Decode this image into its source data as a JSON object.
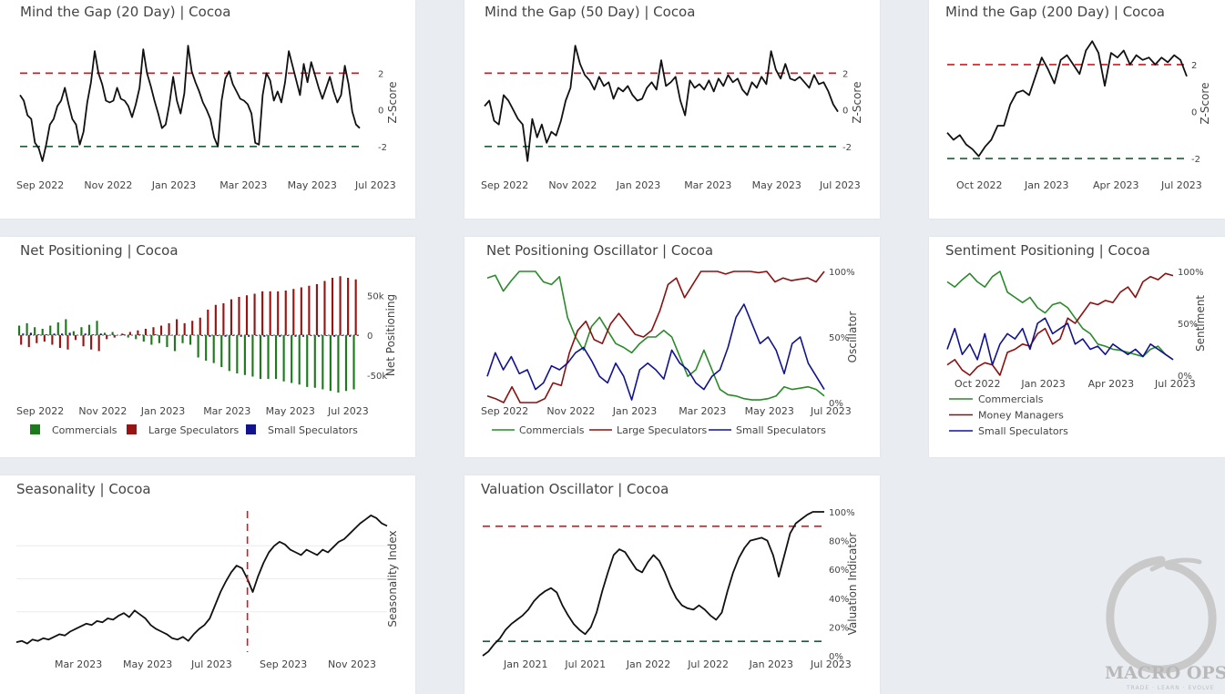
{
  "colors": {
    "red_dash": "#c81d25",
    "green_dash": "#1e5a3a",
    "black": "#111111",
    "green": "#2a8a2a",
    "darkred": "#8b1010",
    "navy": "#12128f",
    "bar_green": "#1c7a1c",
    "bar_red": "#991313",
    "bar_navy": "#131390"
  },
  "branding": {
    "logo_text": "MACRO OPS",
    "logo_tagline": "TRADE · LEARN · EVOLVE"
  },
  "charts": [
    {
      "title": "Mind the Gap (20 Day) | Cocoa",
      "chart_data": {
        "type": "line",
        "series": [
          {
            "values": [
              0.8,
              0.5,
              -0.3,
              -0.5,
              -1.8,
              -2.1,
              -2.8,
              -1.9,
              -0.8,
              -0.5,
              0.2,
              0.5,
              1.2,
              0.3,
              -0.5,
              -0.8,
              -1.9,
              -1.2,
              0.4,
              1.5,
              3.2,
              2.0,
              1.4,
              0.5,
              0.4,
              0.5,
              1.2,
              0.6,
              0.5,
              0.2,
              -0.4,
              0.3,
              1.2,
              3.3,
              2.0,
              1.3,
              0.5,
              -0.2,
              -1.0,
              -0.8,
              0.3,
              1.8,
              0.5,
              -0.2,
              0.9,
              3.5,
              2.1,
              1.5,
              1.0,
              0.4,
              0.0,
              -0.5,
              -1.5,
              -2.0,
              0.5,
              1.7,
              2.1,
              1.4,
              1.0,
              0.6,
              0.5,
              0.3,
              -0.2,
              -1.8,
              -1.9,
              0.8,
              2.0,
              1.6,
              0.5,
              1.0,
              0.4,
              1.5,
              3.2,
              2.4,
              1.6,
              0.8,
              2.5,
              1.5,
              2.6,
              1.9,
              1.2,
              0.6,
              1.2,
              1.8,
              1.0,
              0.4,
              0.8,
              2.4,
              1.4,
              -0.1,
              -0.8,
              -1.0
            ]
          }
        ],
        "yticks": [
          2,
          0,
          -2
        ],
        "ylim": [
          -3.2,
          4.0
        ],
        "xticks": [
          "Sep 2022",
          "Nov 2022",
          "Jan 2023",
          "Mar 2023",
          "May 2023",
          "Jul 2023"
        ],
        "ylabel": "Z-Score",
        "hlines": [
          2,
          -2
        ]
      }
    },
    {
      "title": "Mind the Gap (50 Day) | Cocoa",
      "chart_data": {
        "type": "line",
        "series": [
          {
            "values": [
              0.2,
              0.5,
              -0.6,
              -0.8,
              0.8,
              0.5,
              0.0,
              -0.5,
              -0.8,
              -2.8,
              -0.5,
              -1.5,
              -0.8,
              -1.8,
              -1.2,
              -1.4,
              -0.6,
              0.5,
              1.2,
              3.5,
              2.5,
              1.9,
              1.6,
              1.1,
              1.8,
              1.3,
              1.5,
              0.6,
              1.2,
              1.0,
              1.3,
              0.8,
              0.5,
              0.6,
              1.2,
              1.5,
              1.1,
              2.7,
              1.3,
              1.5,
              1.8,
              0.5,
              -0.3,
              1.6,
              1.2,
              1.4,
              1.1,
              1.6,
              1.0,
              1.7,
              1.3,
              1.9,
              1.5,
              1.7,
              1.1,
              0.8,
              1.5,
              1.2,
              1.8,
              1.4,
              3.2,
              2.2,
              1.7,
              2.5,
              1.7,
              1.6,
              1.8,
              1.5,
              1.2,
              1.9,
              1.4,
              1.5,
              1.0,
              0.3,
              -0.1
            ]
          }
        ],
        "yticks": [
          2,
          0,
          -2
        ],
        "ylim": [
          -3.2,
          4.0
        ],
        "xticks": [
          "Sep 2022",
          "Nov 2022",
          "Jan 2023",
          "Mar 2023",
          "May 2023",
          "Jul 2023"
        ],
        "ylabel": "Z-Score",
        "hlines": [
          2,
          -2
        ]
      }
    },
    {
      "title": "Mind the Gap (200 Day) | Cocoa",
      "chart_data": {
        "type": "line",
        "series": [
          {
            "values": [
              -0.9,
              -1.2,
              -1.0,
              -1.4,
              -1.6,
              -1.9,
              -1.5,
              -1.2,
              -0.6,
              -0.6,
              0.3,
              0.8,
              0.9,
              0.7,
              1.5,
              2.3,
              1.8,
              1.2,
              2.2,
              2.4,
              2.0,
              1.6,
              2.6,
              3.0,
              2.5,
              1.1,
              2.5,
              2.3,
              2.6,
              2.0,
              2.4,
              2.2,
              2.3,
              2.0,
              2.3,
              2.1,
              2.4,
              2.2,
              1.5
            ]
          }
        ],
        "yticks": [
          2,
          0,
          -2
        ],
        "ylim": [
          -2.5,
          3.2
        ],
        "xticks": [
          "Oct 2022",
          "Jan 2023",
          "Apr 2023",
          "Jul 2023"
        ],
        "ylabel": "Z-Score",
        "hlines": [
          2,
          -2
        ]
      }
    },
    {
      "title": "Net Positioning | Cocoa",
      "chart_data": {
        "type": "bar",
        "series": [
          {
            "name": "Commercials",
            "values": [
              12,
              15,
              10,
              8,
              12,
              16,
              20,
              5,
              10,
              13,
              18,
              3,
              4,
              0,
              -3,
              -5,
              -8,
              -12,
              -10,
              -15,
              -20,
              -10,
              -12,
              -28,
              -32,
              -35,
              -40,
              -45,
              -48,
              -50,
              -52,
              -55,
              -55,
              -55,
              -58,
              -60,
              -62,
              -65,
              -66,
              -68,
              -70,
              -72,
              -70,
              -68
            ]
          },
          {
            "name": "Large Speculators",
            "values": [
              -12,
              -15,
              -10,
              -8,
              -12,
              -16,
              -18,
              -6,
              -14,
              -18,
              -20,
              -5,
              -3,
              2,
              4,
              6,
              8,
              10,
              12,
              15,
              20,
              15,
              18,
              22,
              32,
              38,
              40,
              45,
              48,
              50,
              52,
              55,
              55,
              55,
              56,
              58,
              60,
              62,
              64,
              68,
              72,
              74,
              72,
              70
            ]
          },
          {
            "name": "Small Speculators",
            "values": [
              2,
              3,
              1,
              1,
              2,
              2,
              3,
              0,
              2,
              1,
              2,
              0,
              0,
              1,
              0,
              1,
              0,
              1,
              0,
              0,
              0,
              -1,
              0,
              -1,
              -2,
              -1,
              -2,
              -1,
              -2,
              -2,
              -1,
              -2,
              -1,
              -2,
              -1,
              -2,
              -2,
              -1,
              -2,
              -1,
              -2,
              -1,
              -2,
              -1
            ]
          }
        ],
        "yticks": [
          50,
          0,
          -50
        ],
        "yticklabels": [
          "50k",
          "0",
          "-50k"
        ],
        "ylim": [
          -80,
          80
        ],
        "xticks": [
          "Sep 2022",
          "Nov 2022",
          "Jan 2023",
          "Mar 2023",
          "May 2023",
          "Jul 2023"
        ],
        "ylabel": "Net Positioning",
        "legend": [
          "Commercials",
          "Large Speculators",
          "Small Speculators"
        ]
      }
    },
    {
      "title": "Net Positioning Oscillator | Cocoa",
      "chart_data": {
        "type": "line",
        "series": [
          {
            "name": "Commercials",
            "values": [
              95,
              97,
              85,
              93,
              100,
              100,
              100,
              92,
              90,
              96,
              65,
              50,
              40,
              58,
              65,
              55,
              45,
              42,
              38,
              45,
              50,
              50,
              55,
              50,
              35,
              20,
              25,
              40,
              25,
              10,
              6,
              5,
              3,
              2,
              2,
              3,
              5,
              12,
              10,
              11,
              12,
              10,
              5
            ]
          },
          {
            "name": "Large Speculators",
            "values": [
              5,
              3,
              0,
              12,
              0,
              0,
              0,
              3,
              15,
              13,
              38,
              55,
              62,
              48,
              45,
              60,
              68,
              60,
              52,
              50,
              55,
              70,
              90,
              95,
              80,
              90,
              100,
              100,
              100,
              98,
              100,
              100,
              100,
              99,
              100,
              92,
              95,
              93,
              94,
              95,
              92,
              100
            ]
          },
          {
            "name": "Small Speculators",
            "values": [
              20,
              38,
              25,
              35,
              22,
              25,
              10,
              15,
              28,
              25,
              30,
              38,
              42,
              32,
              20,
              15,
              30,
              20,
              2,
              25,
              30,
              25,
              18,
              40,
              30,
              25,
              15,
              10,
              20,
              25,
              42,
              65,
              75,
              60,
              45,
              50,
              40,
              22,
              45,
              50,
              30,
              20,
              10
            ]
          }
        ],
        "yticks": [
          100,
          50,
          0
        ],
        "yticklabels": [
          "100%",
          "50%",
          "0%"
        ],
        "ylim": [
          0,
          100
        ],
        "xticks": [
          "Sep 2022",
          "Nov 2022",
          "Jan 2023",
          "Mar 2023",
          "May 2023",
          "Jul 2023"
        ],
        "ylabel": "Oscillator",
        "legend": [
          "Commercials",
          "Large Speculators",
          "Small Speculators"
        ]
      }
    },
    {
      "title": "Sentiment Positioning | Cocoa",
      "chart_data": {
        "type": "line",
        "series": [
          {
            "name": "Commercials",
            "values": [
              90,
              85,
              92,
              98,
              90,
              85,
              95,
              100,
              80,
              75,
              70,
              75,
              65,
              60,
              68,
              70,
              65,
              55,
              45,
              40,
              30,
              28,
              25,
              24,
              22,
              20,
              18,
              25,
              28,
              20,
              15
            ]
          },
          {
            "name": "Money Managers",
            "values": [
              10,
              15,
              5,
              0,
              8,
              12,
              10,
              0,
              22,
              25,
              30,
              28,
              40,
              45,
              30,
              35,
              55,
              50,
              60,
              70,
              68,
              72,
              70,
              80,
              85,
              75,
              90,
              95,
              92,
              98,
              96
            ]
          },
          {
            "name": "Small Speculators",
            "values": [
              25,
              45,
              20,
              30,
              15,
              40,
              10,
              30,
              40,
              35,
              45,
              25,
              50,
              55,
              40,
              45,
              50,
              30,
              35,
              25,
              28,
              20,
              30,
              25,
              20,
              25,
              18,
              30,
              25,
              20,
              15
            ]
          }
        ],
        "yticks": [
          100,
          50,
          0
        ],
        "yticklabels": [
          "100%",
          "50%",
          "0%"
        ],
        "ylim": [
          0,
          100
        ],
        "xticks": [
          "Oct 2022",
          "Jan 2023",
          "Apr 2023",
          "Jul 2023"
        ],
        "ylabel": "Sentiment",
        "legend": [
          "Commercials",
          "Money Managers",
          "Small Speculators"
        ]
      }
    },
    {
      "title": "Seasonality | Cocoa",
      "chart_data": {
        "type": "line",
        "series": [
          {
            "values": [
              2,
              3,
              1,
              4,
              3,
              5,
              4,
              6,
              8,
              7,
              10,
              12,
              14,
              16,
              15,
              18,
              17,
              20,
              19,
              22,
              24,
              21,
              26,
              23,
              20,
              15,
              12,
              10,
              8,
              5,
              4,
              6,
              3,
              8,
              12,
              15,
              20,
              30,
              40,
              48,
              55,
              60,
              58,
              50,
              40,
              52,
              62,
              70,
              75,
              78,
              76,
              72,
              70,
              68,
              72,
              70,
              68,
              72,
              70,
              74,
              78,
              80,
              84,
              88,
              92,
              95,
              98,
              96,
              92,
              90
            ]
          }
        ],
        "ylim": [
          0,
          100
        ],
        "xticks": [
          "Mar 2023",
          "May 2023",
          "Jul 2023",
          "Sep 2023",
          "Nov 2023"
        ],
        "ylabel": "Seasonality Index",
        "vline_index": 43
      }
    },
    {
      "title": "Valuation Oscillator | Cocoa",
      "chart_data": {
        "type": "line",
        "series": [
          {
            "values": [
              0,
              3,
              8,
              12,
              18,
              22,
              25,
              28,
              32,
              38,
              42,
              45,
              47,
              44,
              35,
              28,
              22,
              18,
              15,
              20,
              30,
              45,
              58,
              70,
              74,
              72,
              66,
              60,
              58,
              65,
              70,
              66,
              58,
              48,
              40,
              35,
              33,
              32,
              35,
              32,
              28,
              25,
              30,
              45,
              58,
              68,
              75,
              80,
              81,
              82,
              80,
              70,
              55,
              70,
              85,
              92,
              95,
              98,
              100,
              100,
              100
            ]
          }
        ],
        "yticks": [
          100,
          80,
          60,
          40,
          20,
          0
        ],
        "yticklabels": [
          "100%",
          "80%",
          "60%",
          "40%",
          "20%",
          "0%"
        ],
        "ylim": [
          0,
          100
        ],
        "xticks": [
          "Jan 2021",
          "Jul 2021",
          "Jan 2022",
          "Jul 2022",
          "Jan 2023",
          "Jul 2023"
        ],
        "ylabel": "Valuation Indicator",
        "hlines": [
          90,
          10
        ]
      }
    }
  ]
}
